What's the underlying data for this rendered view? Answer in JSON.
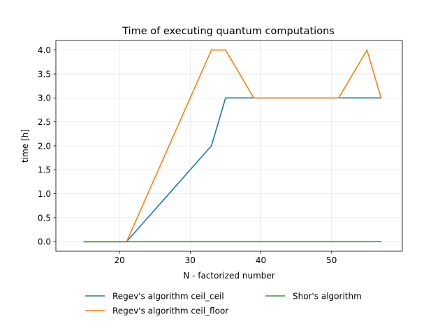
{
  "chart_data": {
    "type": "line",
    "title": "Time of executing quantum computations",
    "xlabel": "N - factorized number",
    "ylabel": "time [h]",
    "xlim": [
      11,
      60
    ],
    "ylim": [
      -0.2,
      4.2
    ],
    "xticks": [
      20,
      30,
      40,
      50
    ],
    "yticks": [
      0.0,
      0.5,
      1.0,
      1.5,
      2.0,
      2.5,
      3.0,
      3.5,
      4.0
    ],
    "ytick_labels": [
      "0.0",
      "0.5",
      "1.0",
      "1.5",
      "2.0",
      "2.5",
      "3.0",
      "3.5",
      "4.0"
    ],
    "grid": true,
    "legend_placement": "below",
    "series": [
      {
        "name": "Regev's algorithm ceil_ceil",
        "color": "#1f77b4",
        "x": [
          15,
          21,
          33,
          35,
          39,
          51,
          55,
          57
        ],
        "y": [
          0,
          0,
          2,
          3,
          3,
          3,
          3,
          3
        ]
      },
      {
        "name": "Regev's algorithm ceil_floor",
        "color": "#ff7f0e",
        "x": [
          15,
          21,
          33,
          35,
          39,
          51,
          55,
          57
        ],
        "y": [
          0,
          0,
          4,
          4,
          3,
          3,
          4,
          3
        ]
      },
      {
        "name": "Shor's algorithm",
        "color": "#2ca02c",
        "x": [
          15,
          21,
          33,
          35,
          39,
          51,
          55,
          57
        ],
        "y": [
          0,
          0,
          0,
          0,
          0,
          0,
          0,
          0
        ]
      }
    ]
  }
}
